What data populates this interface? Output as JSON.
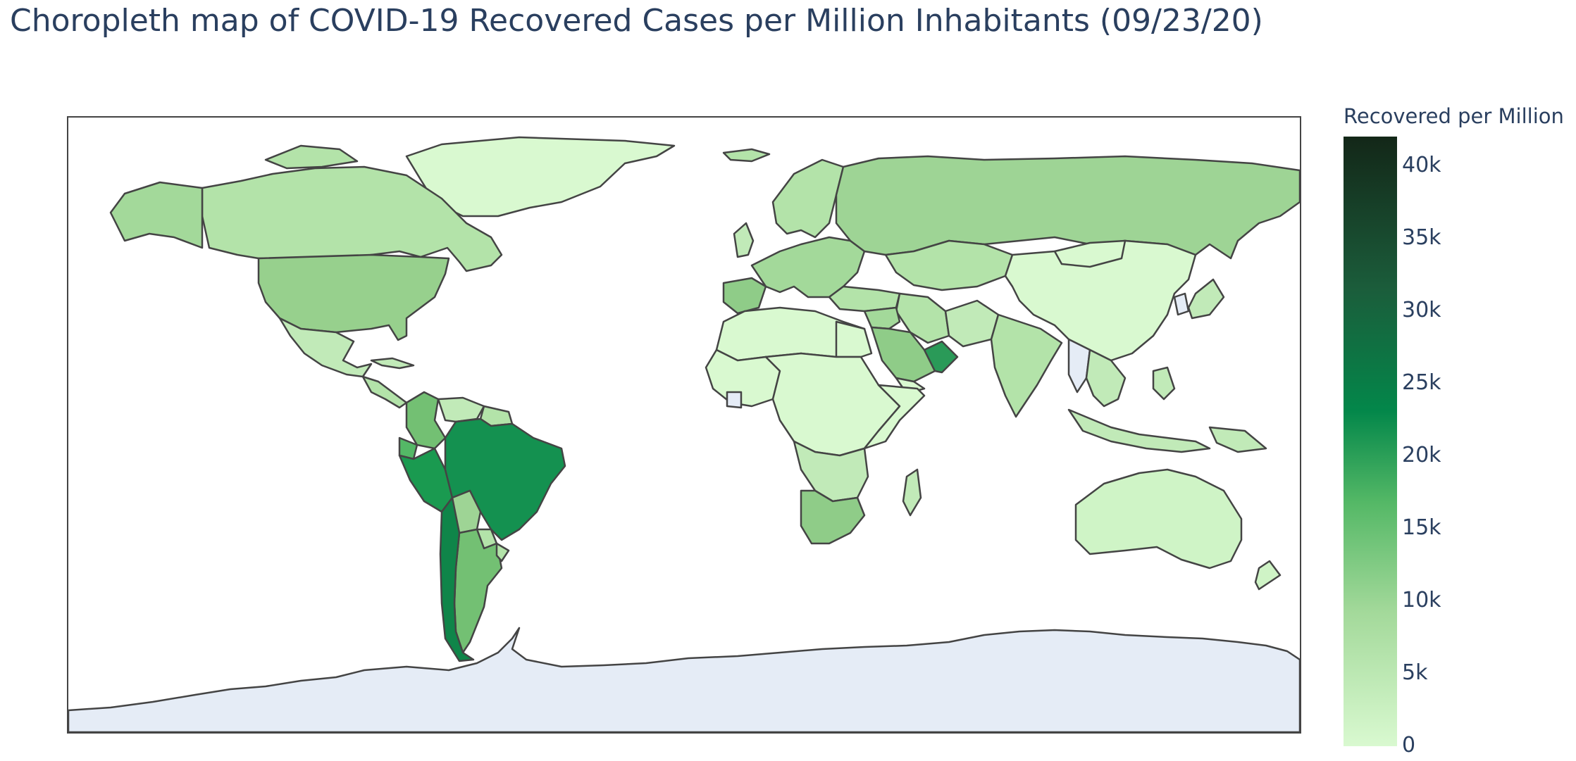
{
  "title": "Choropleth map of COVID-19 Recovered Cases per Million Inhabitants (09/23/20)",
  "colorbar": {
    "title": "Recovered per Million",
    "ticks": [
      "40k",
      "35k",
      "30k",
      "25k",
      "20k",
      "15k",
      "10k",
      "5k",
      "0"
    ],
    "range": [
      0,
      42000
    ]
  },
  "colors": {
    "no_data": "#e5ecf6",
    "border": "#444444",
    "scale": [
      "#d9f9d0",
      "#a3d99a",
      "#54b866",
      "#03874a",
      "#1b5d3b",
      "#132718"
    ]
  },
  "chart_data": {
    "type": "choropleth",
    "title": "Choropleth map of COVID-19 Recovered Cases per Million Inhabitants (09/23/20)",
    "colorbar_title": "Recovered per Million",
    "zrange": [
      0,
      42000
    ],
    "regions": [
      {
        "name": "Greenland",
        "value": 300
      },
      {
        "name": "Canada",
        "value": 3000
      },
      {
        "name": "United States",
        "value": 8000
      },
      {
        "name": "Mexico",
        "value": 4000
      },
      {
        "name": "Colombia",
        "value": 11000
      },
      {
        "name": "Venezuela",
        "value": 3500
      },
      {
        "name": "Brazil",
        "value": 20000
      },
      {
        "name": "Peru",
        "value": 19000
      },
      {
        "name": "Bolivia",
        "value": 8000
      },
      {
        "name": "Argentina",
        "value": 11000
      },
      {
        "name": "Chile",
        "value": 23000
      },
      {
        "name": "Russia",
        "value": 6500
      },
      {
        "name": "China",
        "value": 50
      },
      {
        "name": "India",
        "value": 3300
      },
      {
        "name": "Saudi Arabia",
        "value": 9000
      },
      {
        "name": "Oman",
        "value": 18000
      },
      {
        "name": "Africa (most countries)",
        "value": 300
      },
      {
        "name": "South Africa",
        "value": 10000
      },
      {
        "name": "Australia",
        "value": 1000
      },
      {
        "name": "Antarctica",
        "value": null
      }
    ]
  }
}
